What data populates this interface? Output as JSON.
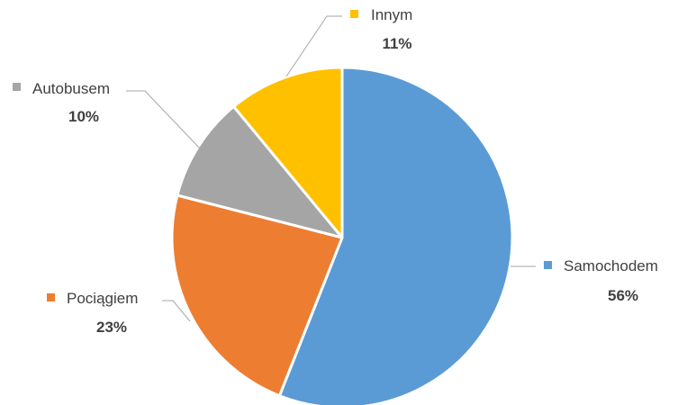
{
  "chart_data": {
    "type": "pie",
    "title": "",
    "categories": [
      "Samochodem",
      "Pociągiem",
      "Autobusem",
      "Innym"
    ],
    "values": [
      56,
      23,
      10,
      11
    ],
    "labels": [
      "56%",
      "23%",
      "10%",
      "11%"
    ],
    "colors": [
      "#5b9bd5",
      "#ed7d31",
      "#a5a5a5",
      "#ffc000"
    ],
    "start_angle_deg": 0,
    "direction": "clockwise",
    "legend": "none (data labels with category name and percentage)"
  }
}
